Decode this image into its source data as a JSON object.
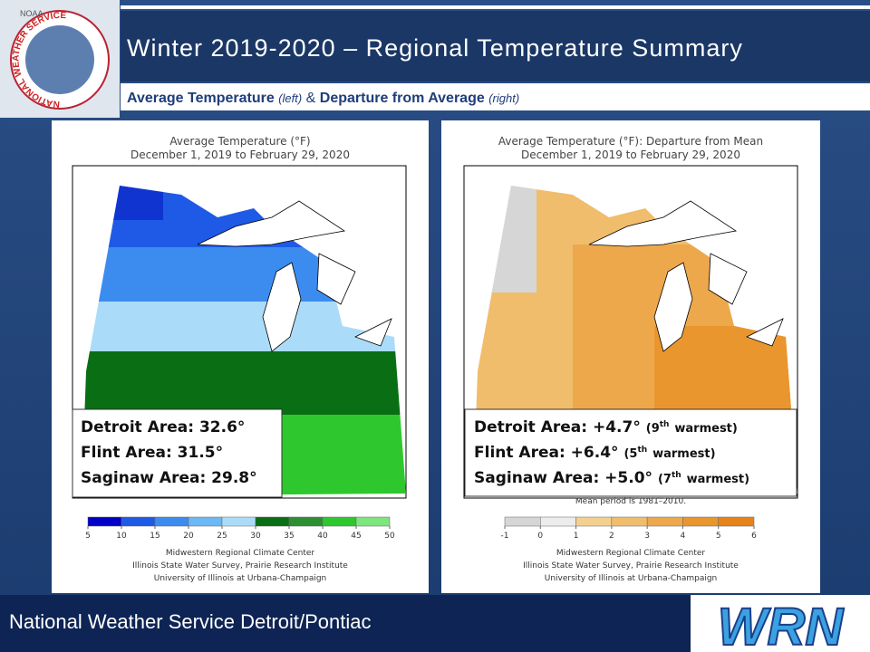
{
  "logo": {
    "noaa": "NOAA",
    "ring": "NATIONAL WEATHER SERVICE"
  },
  "header": {
    "title": "Winter 2019-2020 – Regional Temperature Summary",
    "subtitle": [
      "Average Temperature",
      "(left)",
      "&",
      "Departure from Average",
      "(right)"
    ]
  },
  "maps": [
    {
      "title": "Average Temperature (°F)",
      "period": "December 1, 2019 to February 29, 2020",
      "stats": [
        {
          "label": "Detroit Area: 32.6°"
        },
        {
          "label": "Flint Area: 31.5°"
        },
        {
          "label": "Saginaw Area: 29.8°"
        }
      ],
      "colorbar": {
        "ticks": [
          5,
          10,
          15,
          20,
          25,
          30,
          35,
          40,
          45,
          50
        ],
        "colors": [
          "#0000c8",
          "#1e5ae6",
          "#3c8cf0",
          "#6ab8f5",
          "#aadcfa",
          "#0a6e14",
          "#2e8f32",
          "#2ec82e",
          "#7de67d"
        ]
      },
      "credits": [
        "Midwestern Regional Climate Center",
        "Illinois State Water Survey, Prairie Research Institute",
        "University of Illinois at Urbana-Champaign"
      ]
    },
    {
      "title": "Average Temperature (°F): Departure from Mean",
      "period": "December 1, 2019 to February 29, 2020",
      "stats": [
        {
          "label": "Detroit Area: +4.7°",
          "rank": "(9",
          "suffix": "th",
          "tail": "warmest)"
        },
        {
          "label": "Flint Area: +6.4°",
          "rank": "(5",
          "suffix": "th",
          "tail": "warmest)"
        },
        {
          "label": "Saginaw Area: +5.0°",
          "rank": "(7",
          "suffix": "th",
          "tail": "warmest)"
        }
      ],
      "note": "Mean period is 1981–2010.",
      "colorbar": {
        "ticks": [
          -1,
          0,
          1,
          2,
          3,
          4,
          5,
          6
        ],
        "colors": [
          "#d6d6d6",
          "#ececec",
          "#f3d08e",
          "#f0bd6c",
          "#eda84c",
          "#e9962e",
          "#e5841a"
        ]
      },
      "credits": [
        "Midwestern Regional Climate Center",
        "Illinois State Water Survey, Prairie Research Institute",
        "University of Illinois at Urbana-Champaign"
      ]
    }
  ],
  "footer": {
    "text": "National Weather Service Detroit/Pontiac",
    "logo": "WRN"
  }
}
